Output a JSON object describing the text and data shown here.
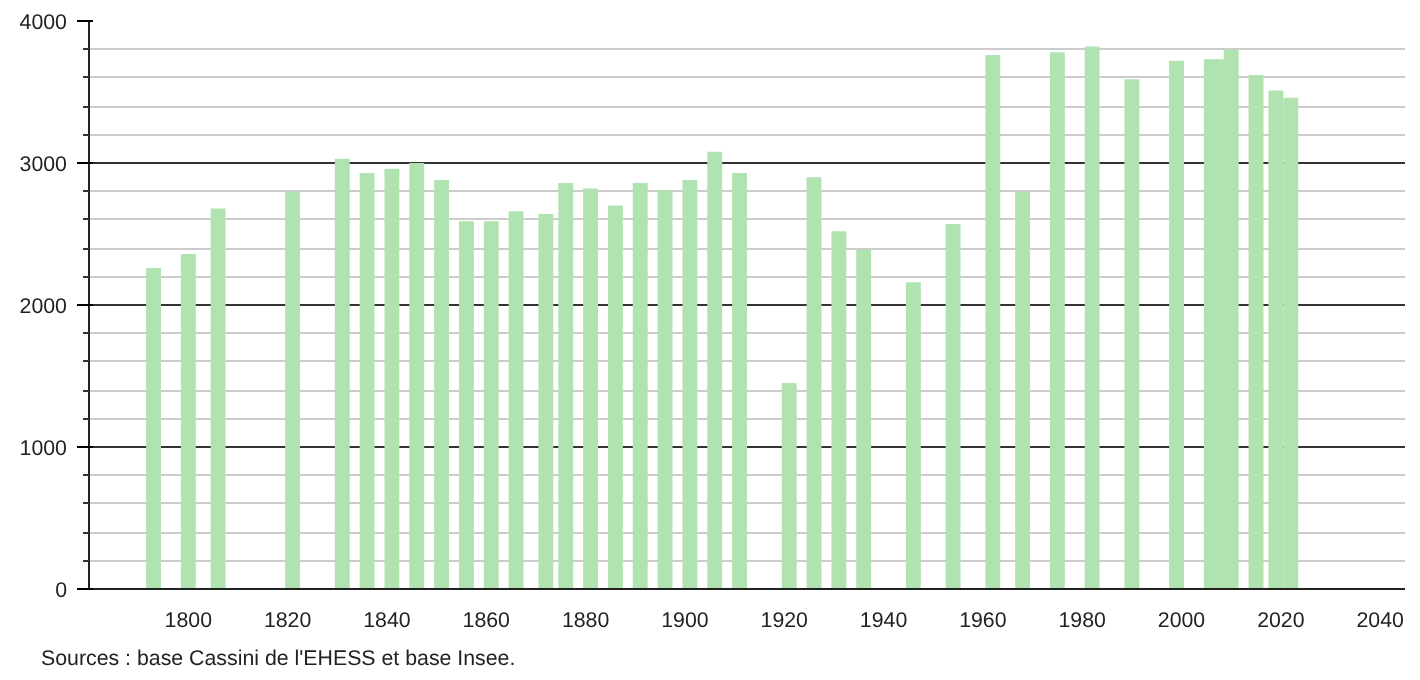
{
  "chart_data": {
    "type": "bar",
    "color": "#b0e3b0",
    "x": [
      1793,
      1800,
      1806,
      1821,
      1831,
      1836,
      1841,
      1846,
      1851,
      1856,
      1861,
      1866,
      1872,
      1876,
      1881,
      1886,
      1891,
      1896,
      1901,
      1906,
      1911,
      1921,
      1926,
      1931,
      1936,
      1946,
      1954,
      1962,
      1968,
      1975,
      1982,
      1990,
      1999,
      2006,
      2008,
      2010,
      2015,
      2019,
      2022
    ],
    "values": [
      2260,
      2360,
      2680,
      2800,
      3030,
      2930,
      2960,
      3000,
      2880,
      2590,
      2590,
      2660,
      2640,
      2860,
      2820,
      2700,
      2860,
      2810,
      2880,
      3080,
      2930,
      1450,
      2900,
      2520,
      2390,
      2160,
      2570,
      3760,
      2800,
      3780,
      3820,
      3590,
      3720,
      3730,
      3730,
      3800,
      3620,
      3510,
      3460
    ],
    "xlim": [
      1780,
      2045
    ],
    "xticks": [
      1800,
      1820,
      1840,
      1860,
      1880,
      1900,
      1920,
      1940,
      1960,
      1980,
      2000,
      2020,
      2040
    ],
    "ylim": [
      0,
      4000
    ],
    "yticks": [
      0,
      1000,
      2000,
      3000,
      4000
    ],
    "grid": "y",
    "annotations": [
      "Sources : base Cassini de l'EHESS et base Insee."
    ]
  }
}
